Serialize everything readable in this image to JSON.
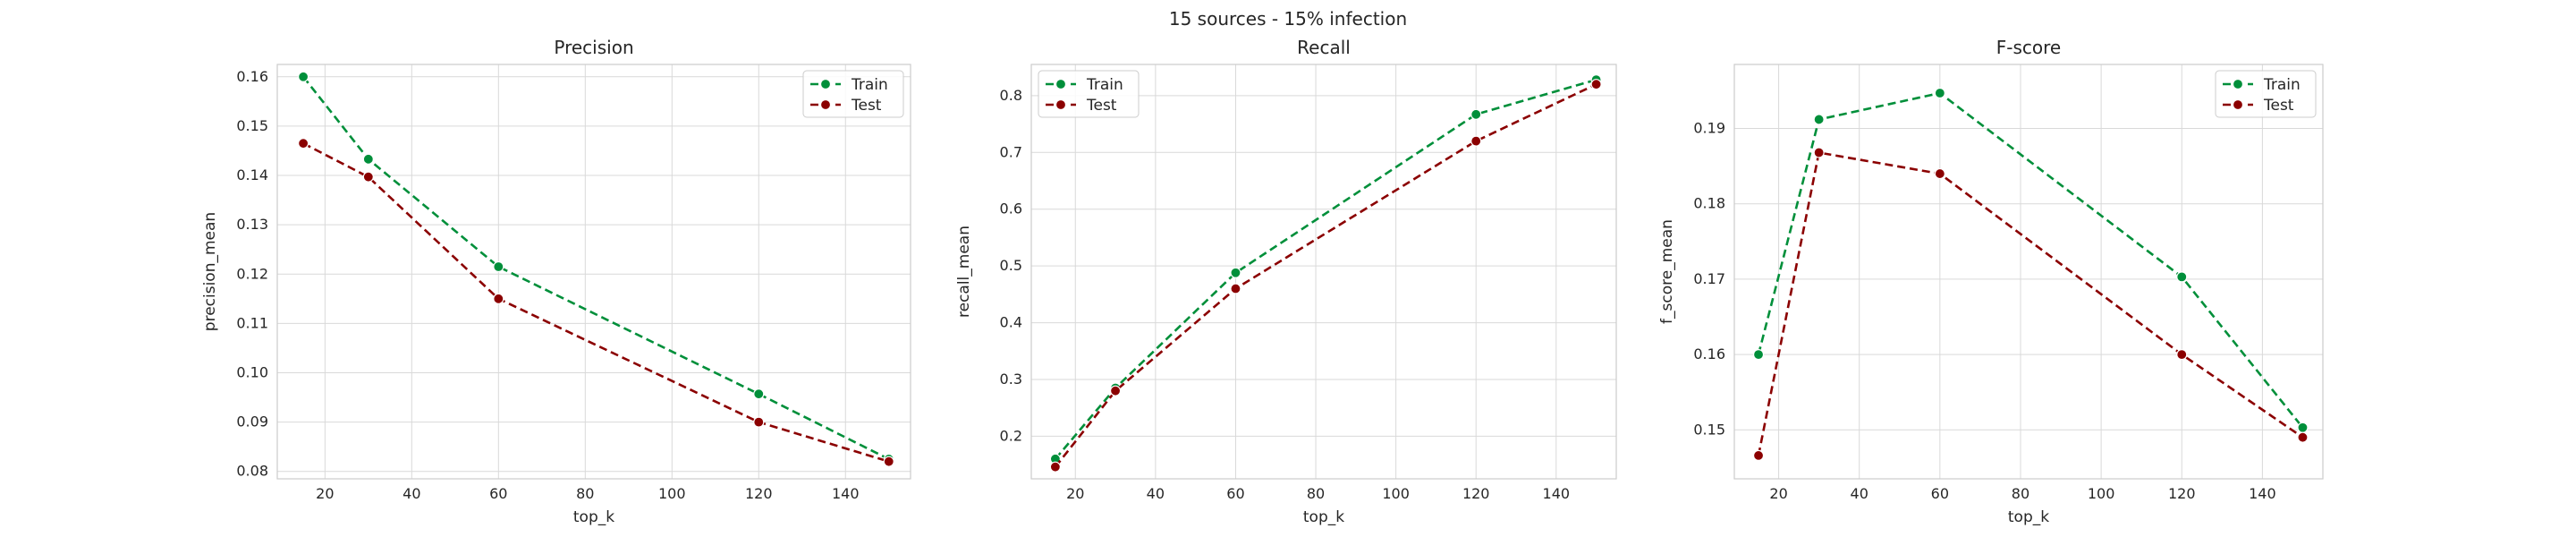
{
  "figure": {
    "suptitle": "15 sources - 15% infection"
  },
  "colors": {
    "train": "#008f3a",
    "test": "#8b0000",
    "grid": "#d9d9d9",
    "spine": "#cccccc"
  },
  "chart_data": [
    {
      "type": "line",
      "title": "Precision",
      "xlabel": "top_k",
      "ylabel": "precision_mean",
      "x": [
        15,
        30,
        60,
        120,
        150
      ],
      "xlim": [
        9,
        155
      ],
      "ylim": [
        0.0785,
        0.1625
      ],
      "xticks": [
        20,
        40,
        60,
        80,
        100,
        120,
        140
      ],
      "yticks": [
        0.08,
        0.09,
        0.1,
        0.11,
        0.12,
        0.13,
        0.14,
        0.15,
        0.16
      ],
      "ytick_labels": [
        "0.08",
        "0.09",
        "0.10",
        "0.11",
        "0.12",
        "0.13",
        "0.14",
        "0.15",
        "0.16"
      ],
      "legend_loc": "top-right",
      "grid": true,
      "series": [
        {
          "name": "Train",
          "key": "train",
          "values": [
            0.16,
            0.1433,
            0.1215,
            0.0957,
            0.0825
          ]
        },
        {
          "name": "Test",
          "key": "test",
          "values": [
            0.1465,
            0.1397,
            0.115,
            0.09,
            0.082
          ]
        }
      ]
    },
    {
      "type": "line",
      "title": "Recall",
      "xlabel": "top_k",
      "ylabel": "recall_mean",
      "x": [
        15,
        30,
        60,
        120,
        150
      ],
      "xlim": [
        9,
        155
      ],
      "ylim": [
        0.125,
        0.855
      ],
      "xticks": [
        20,
        40,
        60,
        80,
        100,
        120,
        140
      ],
      "yticks": [
        0.2,
        0.3,
        0.4,
        0.5,
        0.6,
        0.7,
        0.8
      ],
      "ytick_labels": [
        "0.2",
        "0.3",
        "0.4",
        "0.5",
        "0.6",
        "0.7",
        "0.8"
      ],
      "legend_loc": "top-left",
      "grid": true,
      "series": [
        {
          "name": "Train",
          "key": "train",
          "values": [
            0.16,
            0.285,
            0.488,
            0.767,
            0.828
          ]
        },
        {
          "name": "Test",
          "key": "test",
          "values": [
            0.146,
            0.28,
            0.46,
            0.72,
            0.82
          ]
        }
      ]
    },
    {
      "type": "line",
      "title": "F-score",
      "xlabel": "top_k",
      "ylabel": "f_score_mean",
      "x": [
        15,
        30,
        60,
        120,
        150
      ],
      "xlim": [
        9,
        155
      ],
      "ylim": [
        0.1435,
        0.1985
      ],
      "xticks": [
        20,
        40,
        60,
        80,
        100,
        120,
        140
      ],
      "yticks": [
        0.15,
        0.16,
        0.17,
        0.18,
        0.19
      ],
      "ytick_labels": [
        "0.15",
        "0.16",
        "0.17",
        "0.18",
        "0.19"
      ],
      "legend_loc": "top-right",
      "grid": true,
      "series": [
        {
          "name": "Train",
          "key": "train",
          "values": [
            0.16,
            0.1912,
            0.1947,
            0.1703,
            0.1503
          ]
        },
        {
          "name": "Test",
          "key": "test",
          "values": [
            0.1466,
            0.1868,
            0.184,
            0.16,
            0.149
          ]
        }
      ]
    }
  ]
}
